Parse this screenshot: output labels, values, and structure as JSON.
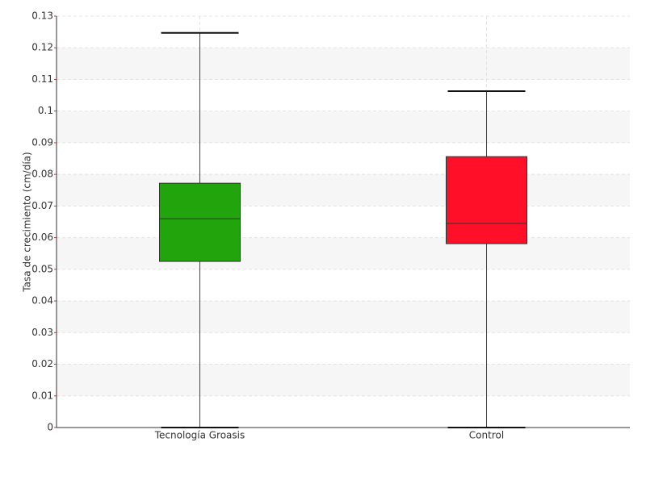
{
  "chart_data": {
    "type": "box",
    "y_label": "Tasa de crecimiento (cm/día)",
    "categories": [
      "Tecnología Groasis",
      "Control"
    ],
    "boxes": [
      {
        "color": "#22a40c",
        "min": 0,
        "q1": 0.0525,
        "median": 0.066,
        "q3": 0.0772,
        "max": 0.1247
      },
      {
        "color": "#ff0f28",
        "min": 0,
        "q1": 0.0581,
        "median": 0.0645,
        "q3": 0.0856,
        "max": 0.1063
      }
    ],
    "ylim": [
      0,
      0.13
    ],
    "yticks": [
      0,
      0.01,
      0.02,
      0.03,
      0.04,
      0.05,
      0.06,
      0.07,
      0.08,
      0.09,
      0.1,
      0.11,
      0.12,
      0.13
    ],
    "grid": true
  }
}
